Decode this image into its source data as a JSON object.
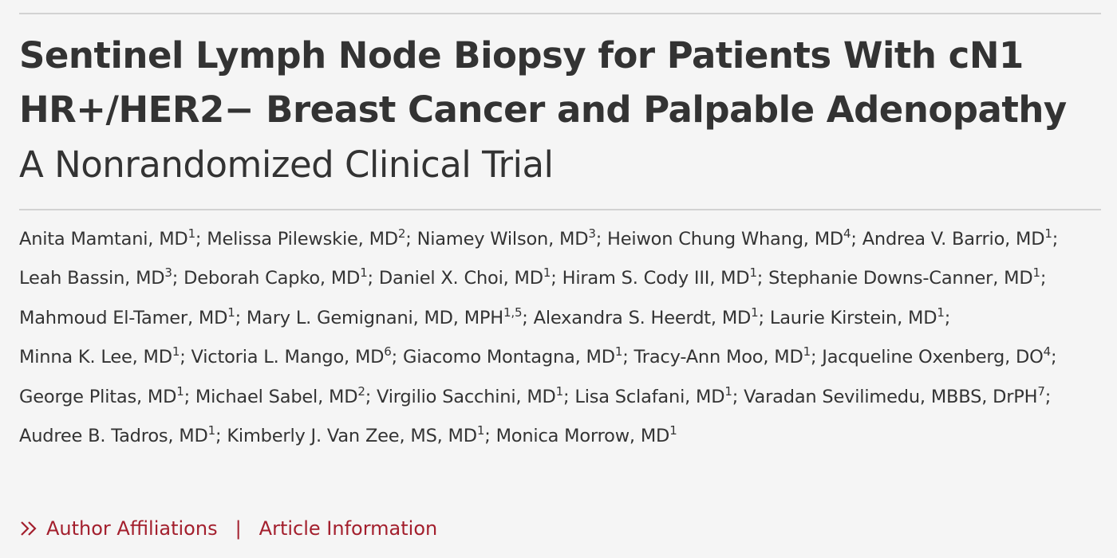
{
  "article": {
    "title": "Sentinel Lymph Node Biopsy for Patients With cN1 HR+/HER2− Breast Cancer and Palpable Adenopathy",
    "subtitle": "A Nonrandomized Clinical Trial"
  },
  "authors": [
    {
      "name": "Anita Mamtani, MD",
      "aff": "1"
    },
    {
      "name": "Melissa Pilewskie, MD",
      "aff": "2"
    },
    {
      "name": "Niamey Wilson, MD",
      "aff": "3"
    },
    {
      "name": "Heiwon Chung Whang, MD",
      "aff": "4"
    },
    {
      "name": "Andrea V. Barrio, MD",
      "aff": "1"
    },
    {
      "name": "Leah Bassin, MD",
      "aff": "3"
    },
    {
      "name": "Deborah Capko, MD",
      "aff": "1"
    },
    {
      "name": "Daniel X. Choi, MD",
      "aff": "1"
    },
    {
      "name": "Hiram S. Cody III, MD",
      "aff": "1"
    },
    {
      "name": "Stephanie Downs-Canner, MD",
      "aff": "1"
    },
    {
      "name": "Mahmoud El-Tamer, MD",
      "aff": "1"
    },
    {
      "name": "Mary L. Gemignani, MD, MPH",
      "aff": "1,5"
    },
    {
      "name": "Alexandra S. Heerdt, MD",
      "aff": "1"
    },
    {
      "name": "Laurie Kirstein, MD",
      "aff": "1"
    },
    {
      "name": "Minna K. Lee, MD",
      "aff": "1"
    },
    {
      "name": "Victoria L. Mango, MD",
      "aff": "6"
    },
    {
      "name": "Giacomo Montagna, MD",
      "aff": "1"
    },
    {
      "name": "Tracy-Ann Moo, MD",
      "aff": "1"
    },
    {
      "name": "Jacqueline Oxenberg, DO",
      "aff": "4"
    },
    {
      "name": "George Plitas, MD",
      "aff": "1"
    },
    {
      "name": "Michael Sabel, MD",
      "aff": "2"
    },
    {
      "name": "Virgilio Sacchini, MD",
      "aff": "1"
    },
    {
      "name": "Lisa Sclafani, MD",
      "aff": "1"
    },
    {
      "name": "Varadan Sevilimedu, MBBS, DrPH",
      "aff": "7"
    },
    {
      "name": "Audree B. Tadros, MD",
      "aff": "1"
    },
    {
      "name": "Kimberly J. Van Zee, MS, MD",
      "aff": "1"
    },
    {
      "name": "Monica Morrow, MD",
      "aff": "1"
    }
  ],
  "author_separator": "; ",
  "links": {
    "icon": "double-chevron-right-icon",
    "affiliations_label": "Author Affiliations",
    "separator": "|",
    "article_info_label": "Article Information"
  },
  "colors": {
    "link": "#a31f2d",
    "text": "#333333",
    "background": "#f5f5f5",
    "rule": "#d2d2d2"
  }
}
